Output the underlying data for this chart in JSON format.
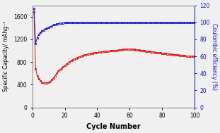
{
  "title": "",
  "xlabel": "Cycle Number",
  "ylabel_left": "Specific Capacity/ mAhg⁻¹",
  "ylabel_right": "Coulombic efficiency (%)",
  "xlim": [
    0,
    100
  ],
  "ylim_left": [
    0,
    1800
  ],
  "ylim_right": [
    0,
    120
  ],
  "yticks_left": [
    0,
    400,
    800,
    1200,
    1600
  ],
  "yticks_right": [
    0,
    20,
    40,
    60,
    80,
    100,
    120
  ],
  "xticks": [
    0,
    20,
    40,
    60,
    80,
    100
  ],
  "red_color": "#dd1111",
  "blue_color": "#1111cc",
  "bg_color": "#f0f0f0",
  "figsize": [
    3.11,
    1.89
  ],
  "dpi": 100,
  "red_x": [
    1,
    2,
    3,
    4,
    5,
    6,
    7,
    8,
    9,
    10,
    11,
    12,
    13,
    14,
    15,
    16,
    17,
    18,
    19,
    20,
    21,
    22,
    23,
    24,
    25,
    26,
    27,
    28,
    29,
    30,
    31,
    32,
    33,
    34,
    35,
    36,
    37,
    38,
    39,
    40,
    41,
    42,
    43,
    44,
    45,
    46,
    47,
    48,
    49,
    50,
    51,
    52,
    53,
    54,
    55,
    56,
    57,
    58,
    59,
    60,
    61,
    62,
    63,
    64,
    65,
    66,
    67,
    68,
    69,
    70,
    71,
    72,
    73,
    74,
    75,
    76,
    77,
    78,
    79,
    80,
    81,
    82,
    83,
    84,
    85,
    86,
    87,
    88,
    89,
    90,
    91,
    92,
    93,
    94,
    95,
    96,
    97,
    98,
    99,
    100
  ],
  "red_y": [
    1680,
    680,
    560,
    510,
    470,
    445,
    435,
    432,
    435,
    445,
    460,
    490,
    520,
    560,
    600,
    635,
    665,
    690,
    715,
    740,
    762,
    783,
    803,
    822,
    840,
    856,
    870,
    882,
    892,
    902,
    912,
    921,
    930,
    938,
    945,
    951,
    957,
    962,
    966,
    970,
    974,
    978,
    982,
    986,
    989,
    992,
    994,
    996,
    998,
    1000,
    1003,
    1006,
    1009,
    1012,
    1016,
    1020,
    1024,
    1026,
    1028,
    1030,
    1028,
    1024,
    1020,
    1016,
    1013,
    1009,
    1005,
    1001,
    997,
    993,
    989,
    985,
    981,
    978,
    974,
    970,
    967,
    963,
    959,
    955,
    951,
    948,
    944,
    940,
    937,
    934,
    931,
    928,
    925,
    922,
    919,
    916,
    913,
    910,
    908,
    906,
    904,
    902,
    900,
    898
  ],
  "blue_x": [
    1,
    2,
    3,
    4,
    5,
    6,
    7,
    8,
    9,
    10,
    11,
    12,
    13,
    14,
    15,
    16,
    17,
    18,
    19,
    20,
    21,
    22,
    23,
    24,
    25,
    26,
    27,
    28,
    29,
    30,
    31,
    32,
    33,
    34,
    35,
    36,
    37,
    38,
    39,
    40,
    41,
    42,
    43,
    44,
    45,
    46,
    47,
    48,
    49,
    50,
    51,
    52,
    53,
    54,
    55,
    56,
    57,
    58,
    59,
    60,
    61,
    62,
    63,
    64,
    65,
    66,
    67,
    68,
    69,
    70,
    71,
    72,
    73,
    74,
    75,
    76,
    77,
    78,
    79,
    80,
    81,
    82,
    83,
    84,
    85,
    86,
    87,
    88,
    89,
    90,
    91,
    92,
    93,
    94,
    95,
    96,
    97,
    98,
    99,
    100
  ],
  "blue_y": [
    116,
    75,
    82,
    86,
    88,
    90,
    91,
    92,
    93,
    94,
    95,
    96,
    97,
    97.5,
    98,
    98.5,
    99,
    99.2,
    99.4,
    99.5,
    99.6,
    99.7,
    99.7,
    99.8,
    99.8,
    99.8,
    99.8,
    99.8,
    99.8,
    99.8,
    99.9,
    99.9,
    99.9,
    99.9,
    99.9,
    99.9,
    99.9,
    99.9,
    99.9,
    99.9,
    99.9,
    99.9,
    99.9,
    99.9,
    99.9,
    99.9,
    99.9,
    99.9,
    99.9,
    99.9,
    99.9,
    99.9,
    99.9,
    99.9,
    99.9,
    99.9,
    99.9,
    99.8,
    99.9,
    99.9,
    99.9,
    99.9,
    99.9,
    99.9,
    99.9,
    99.8,
    99.9,
    99.9,
    99.9,
    99.9,
    99.9,
    99.9,
    99.9,
    99.9,
    99.9,
    99.9,
    99.9,
    99.9,
    99.9,
    99.9,
    99.9,
    99.9,
    99.9,
    99.9,
    99.9,
    99.9,
    99.9,
    99.9,
    99.9,
    99.9,
    99.9,
    99.9,
    99.9,
    99.9,
    99.9,
    99.9,
    99.9,
    99.9,
    99.9,
    99.9
  ]
}
